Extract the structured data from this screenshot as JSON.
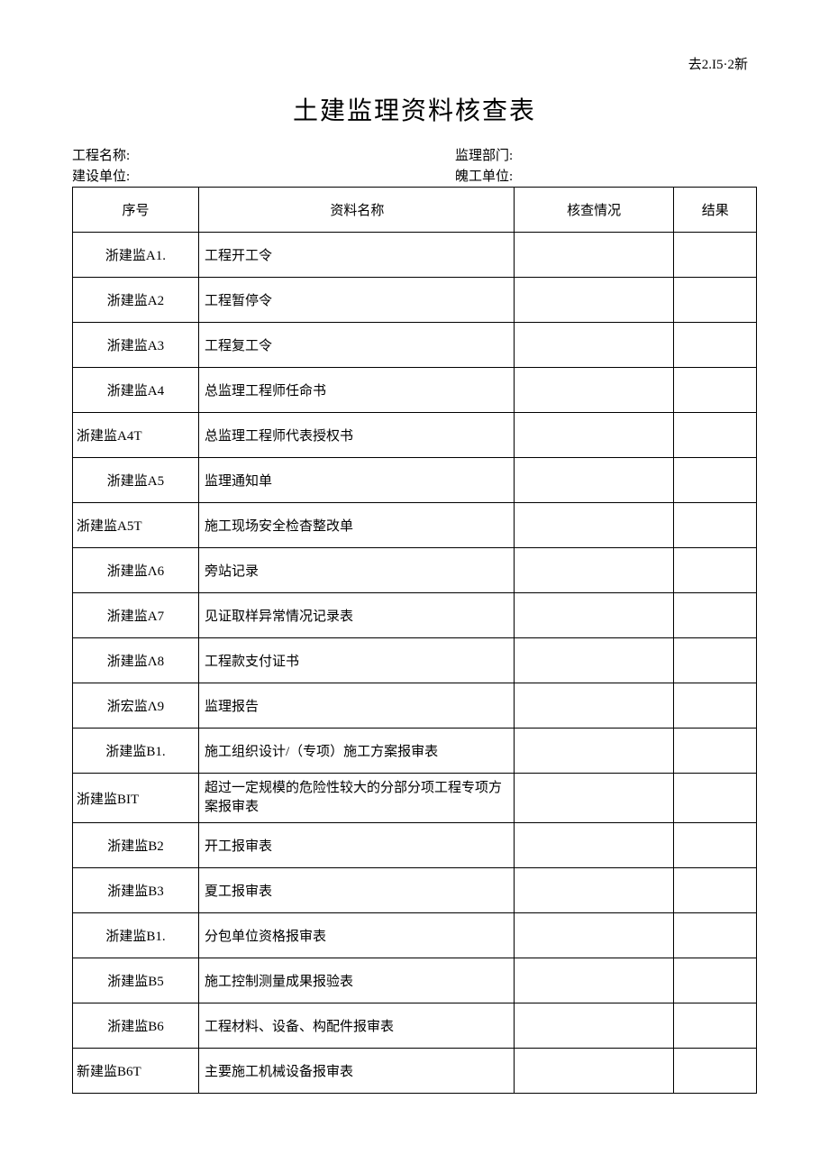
{
  "topRight": "去2.I5·2新",
  "title": "土建监理资料核查表",
  "meta": {
    "row1": {
      "leftLabel": "工程名称:",
      "rightLabel": "监理部门:"
    },
    "row2": {
      "leftLabel": "建设单位:",
      "rightLabel": "魄工单位:"
    }
  },
  "headers": {
    "seq": "序号",
    "name": "资料名称",
    "check": "核查情况",
    "result": "结果"
  },
  "rows": [
    {
      "seq": "浙建监A1.",
      "seqAlign": "center",
      "name": "工程开工令",
      "check": "",
      "result": ""
    },
    {
      "seq": "浙建监A2",
      "seqAlign": "center",
      "name": "工程暂停令",
      "check": "",
      "result": ""
    },
    {
      "seq": "浙建监A3",
      "seqAlign": "center",
      "name": "工程复工令",
      "check": "",
      "result": ""
    },
    {
      "seq": "浙建监A4",
      "seqAlign": "center",
      "name": "总监理工程师任命书",
      "check": "",
      "result": ""
    },
    {
      "seq": "浙建监A4T",
      "seqAlign": "left",
      "name": "总监理工程师代表授权书",
      "check": "",
      "result": ""
    },
    {
      "seq": "浙建监A5",
      "seqAlign": "center",
      "name": "监理通知单",
      "check": "",
      "result": ""
    },
    {
      "seq": "浙建监A5T",
      "seqAlign": "left",
      "name": "施工现场安全检杳整改单",
      "check": "",
      "result": ""
    },
    {
      "seq": "浙建监Λ6",
      "seqAlign": "center",
      "name": "旁站记录",
      "check": "",
      "result": ""
    },
    {
      "seq": "浙建监A7",
      "seqAlign": "center",
      "name": "见证取样异常情况记录表",
      "check": "",
      "result": ""
    },
    {
      "seq": "浙建监Λ8",
      "seqAlign": "center",
      "name": "工程款支付证书",
      "check": "",
      "result": ""
    },
    {
      "seq": "浙宏监Λ9",
      "seqAlign": "center",
      "name": "监理报告",
      "check": "",
      "result": ""
    },
    {
      "seq": "浙建监B1.",
      "seqAlign": "center",
      "name": "施工组织设计/（专项）施工方案报审表",
      "check": "",
      "result": ""
    },
    {
      "seq": "浙建监BIT",
      "seqAlign": "left",
      "name": "超过一定规模的危险性较大的分部分项工程专项方案报审表",
      "check": "",
      "result": "",
      "multiline": true
    },
    {
      "seq": "浙建监B2",
      "seqAlign": "center",
      "name": "开工报审表",
      "check": "",
      "result": ""
    },
    {
      "seq": "浙建监B3",
      "seqAlign": "center",
      "name": "夏工报审表",
      "check": "",
      "result": ""
    },
    {
      "seq": "浙建监B1.",
      "seqAlign": "center",
      "name": "分包单位资格报审表",
      "check": "",
      "result": ""
    },
    {
      "seq": "浙建监B5",
      "seqAlign": "center",
      "name": "施工控制测量成果报验表",
      "check": "",
      "result": ""
    },
    {
      "seq": "浙建监B6",
      "seqAlign": "center",
      "name": "工程材料、设备、构配件报审表",
      "check": "",
      "result": ""
    },
    {
      "seq": "新建监B6T",
      "seqAlign": "left",
      "name": "主要施工机械设备报审表",
      "check": "",
      "result": ""
    }
  ]
}
